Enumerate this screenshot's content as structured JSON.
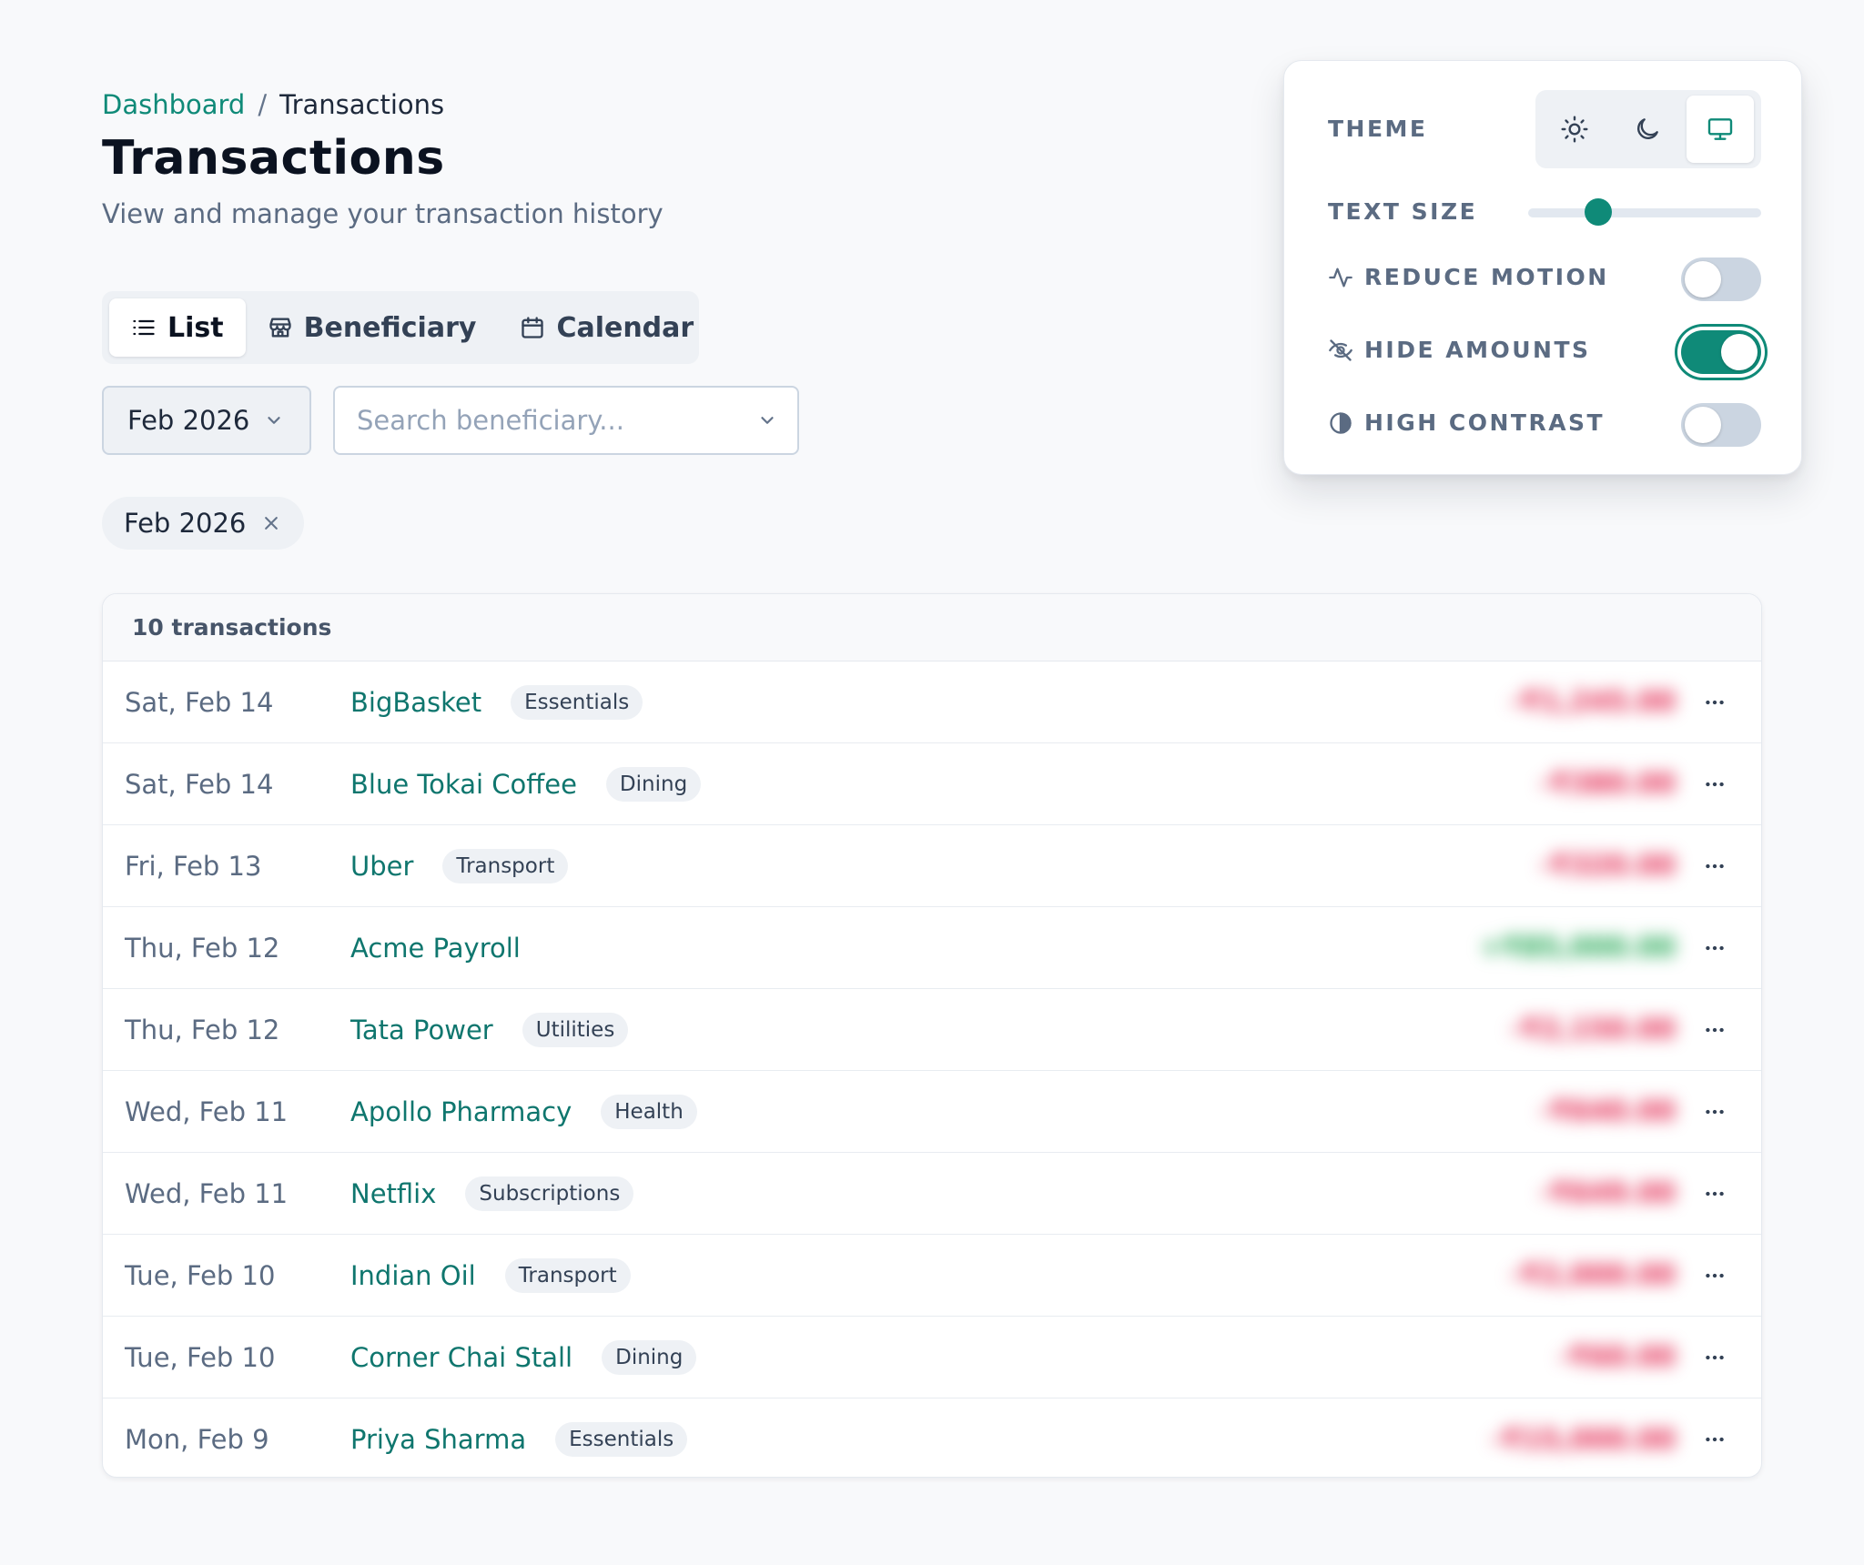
{
  "breadcrumb": {
    "root": "Dashboard",
    "separator": "/",
    "current": "Transactions"
  },
  "page": {
    "title": "Transactions",
    "subtitle": "View and manage your transaction history"
  },
  "view_tabs": [
    {
      "label": "List",
      "icon": "list-icon",
      "active": true
    },
    {
      "label": "Beneficiary",
      "icon": "store-icon",
      "active": false
    },
    {
      "label": "Calendar",
      "icon": "calendar-icon",
      "active": false
    }
  ],
  "filters": {
    "month_value": "Feb 2026",
    "search_placeholder": "Search beneficiary...",
    "active_chip": "Feb 2026"
  },
  "transactions": {
    "count_label": "10 transactions",
    "rows": [
      {
        "date": "Sat, Feb 14",
        "merchant": "BigBasket",
        "category": "Essentials",
        "amount": "-₹1,245.00",
        "type": "debit"
      },
      {
        "date": "Sat, Feb 14",
        "merchant": "Blue Tokai Coffee",
        "category": "Dining",
        "amount": "-₹380.00",
        "type": "debit"
      },
      {
        "date": "Fri, Feb 13",
        "merchant": "Uber",
        "category": "Transport",
        "amount": "-₹320.00",
        "type": "debit"
      },
      {
        "date": "Thu, Feb 12",
        "merchant": "Acme Payroll",
        "category": "",
        "amount": "+₹85,000.00",
        "type": "credit"
      },
      {
        "date": "Thu, Feb 12",
        "merchant": "Tata Power",
        "category": "Utilities",
        "amount": "-₹2,150.00",
        "type": "debit"
      },
      {
        "date": "Wed, Feb 11",
        "merchant": "Apollo Pharmacy",
        "category": "Health",
        "amount": "-₹640.00",
        "type": "debit"
      },
      {
        "date": "Wed, Feb 11",
        "merchant": "Netflix",
        "category": "Subscriptions",
        "amount": "-₹649.00",
        "type": "debit"
      },
      {
        "date": "Tue, Feb 10",
        "merchant": "Indian Oil",
        "category": "Transport",
        "amount": "-₹2,000.00",
        "type": "debit"
      },
      {
        "date": "Tue, Feb 10",
        "merchant": "Corner Chai Stall",
        "category": "Dining",
        "amount": "-₹60.00",
        "type": "debit"
      },
      {
        "date": "Mon, Feb 9",
        "merchant": "Priya Sharma",
        "category": "Essentials",
        "amount": "-₹15,000.00",
        "type": "debit"
      }
    ]
  },
  "settings": {
    "theme_label": "THEME",
    "theme_options": [
      "light",
      "dark",
      "system"
    ],
    "theme_selected": "system",
    "text_size_label": "TEXT SIZE",
    "text_size_level": 0.3,
    "reduce_motion_label": "REDUCE MOTION",
    "reduce_motion": false,
    "hide_amounts_label": "HIDE AMOUNTS",
    "hide_amounts": true,
    "high_contrast_label": "HIGH CONTRAST",
    "high_contrast": false
  },
  "colors": {
    "accent": "#0f8a78",
    "debit": "#e11d48",
    "credit": "#16a34a"
  }
}
